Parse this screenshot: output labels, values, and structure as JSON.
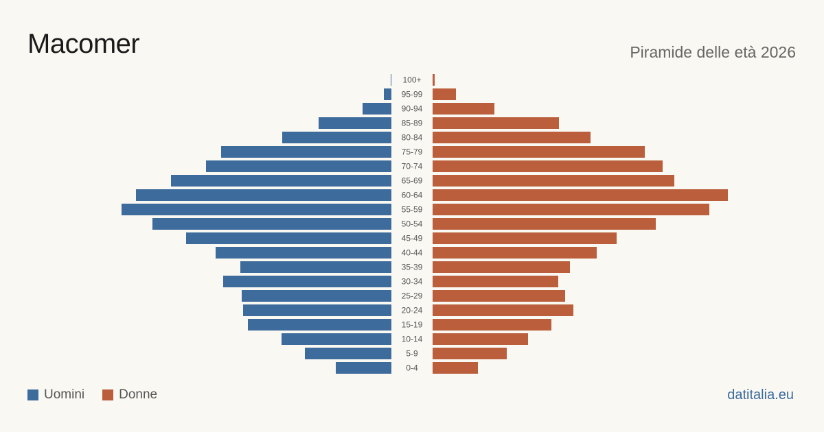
{
  "title": "Macomer",
  "subtitle": "Piramide delle età 2026",
  "source": "datitalia.eu",
  "colors": {
    "men": "#3d6b9c",
    "women": "#bb5e3b",
    "label": "#555555"
  },
  "legend": {
    "men": "Uomini",
    "women": "Donne"
  },
  "chart_data": {
    "type": "bar",
    "orientation": "horizontal-population-pyramid",
    "categories": [
      "100+",
      "95-99",
      "90-94",
      "85-89",
      "80-84",
      "75-79",
      "70-74",
      "65-69",
      "60-64",
      "55-59",
      "50-54",
      "45-49",
      "40-44",
      "35-39",
      "30-34",
      "25-29",
      "20-24",
      "15-19",
      "10-14",
      "5-9",
      "0-4"
    ],
    "series": [
      {
        "name": "Uomini",
        "values": [
          1,
          11,
          42,
          106,
          159,
          248,
          270,
          321,
          372,
          393,
          348,
          299,
          256,
          220,
          245,
          218,
          216,
          209,
          160,
          126,
          81
        ]
      },
      {
        "name": "Donne",
        "values": [
          3,
          34,
          90,
          184,
          230,
          309,
          335,
          352,
          430,
          403,
          325,
          268,
          239,
          200,
          183,
          193,
          205,
          173,
          139,
          108,
          66
        ]
      }
    ],
    "xlim": [
      0,
      430
    ],
    "grid": false,
    "legend_position": "bottom-left"
  }
}
